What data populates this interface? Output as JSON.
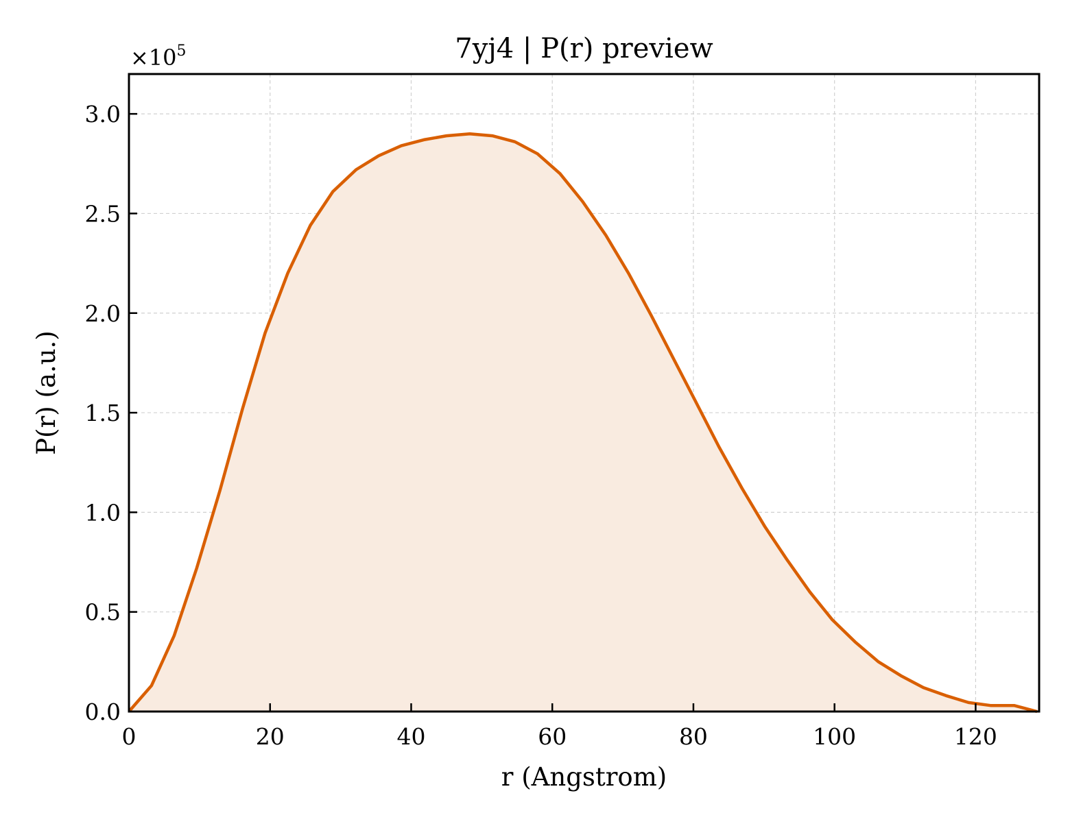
{
  "chart_data": {
    "type": "area",
    "title": "7yj4 | P(r) preview",
    "xlabel": "r (Angstrom)",
    "ylabel": "P(r) (a.u.)",
    "y_offset_text": "×10",
    "y_offset_exponent": "5",
    "xlim": [
      0,
      129
    ],
    "ylim": [
      0,
      3.2
    ],
    "xticks": [
      0,
      20,
      40,
      60,
      80,
      100,
      120
    ],
    "xtick_labels": [
      "0",
      "20",
      "40",
      "60",
      "80",
      "100",
      "120"
    ],
    "yticks": [
      0,
      0.5,
      1.0,
      1.5,
      2.0,
      2.5,
      3.0
    ],
    "ytick_labels": [
      "0.0",
      "0.5",
      "1.0",
      "1.5",
      "2.0",
      "2.5",
      "3.0"
    ],
    "grid": true,
    "series": [
      {
        "color": "#d95f02",
        "fill_color": "#f9ebe0",
        "x": [
          0,
          3.2,
          6.4,
          9.6,
          12.9,
          16.1,
          19.3,
          22.5,
          25.7,
          28.9,
          32.2,
          35.4,
          38.6,
          41.8,
          45.0,
          48.3,
          51.5,
          54.7,
          57.9,
          61.1,
          64.3,
          67.6,
          70.8,
          74.0,
          77.2,
          80.4,
          83.6,
          86.9,
          90.1,
          93.3,
          96.5,
          99.7,
          102.9,
          106.2,
          109.4,
          112.6,
          115.8,
          119.0,
          122.2,
          125.5,
          128.7
        ],
        "y": [
          0.0,
          0.13,
          0.38,
          0.72,
          1.11,
          1.52,
          1.9,
          2.2,
          2.44,
          2.61,
          2.72,
          2.79,
          2.84,
          2.87,
          2.89,
          2.9,
          2.89,
          2.86,
          2.8,
          2.7,
          2.56,
          2.39,
          2.2,
          1.99,
          1.77,
          1.55,
          1.33,
          1.12,
          0.93,
          0.76,
          0.6,
          0.46,
          0.35,
          0.25,
          0.18,
          0.12,
          0.08,
          0.045,
          0.03,
          0.03,
          0.0
        ]
      }
    ]
  }
}
